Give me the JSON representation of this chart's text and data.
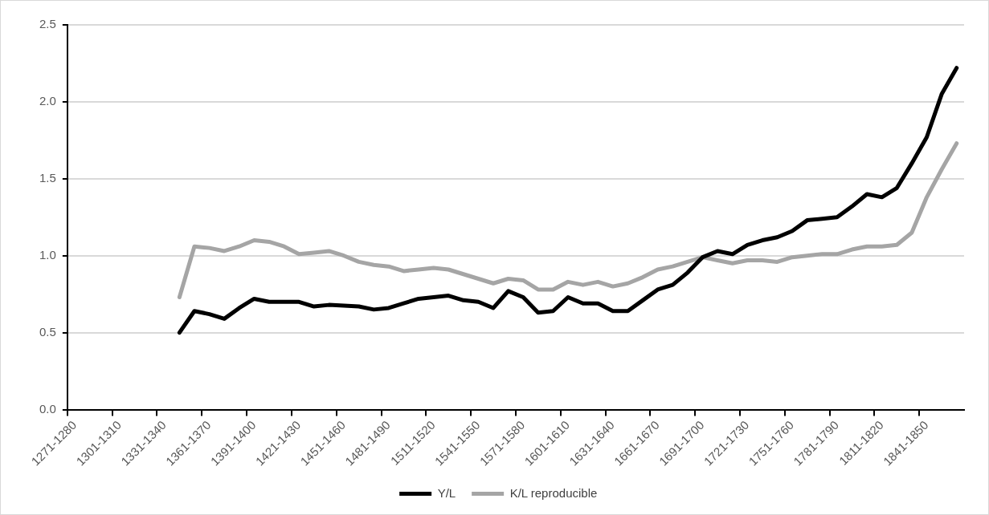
{
  "chart_data": {
    "type": "line",
    "categories": [
      "1271-1280",
      null,
      null,
      "1301-1310",
      null,
      null,
      "1331-1340",
      null,
      null,
      "1361-1370",
      null,
      null,
      "1391-1400",
      null,
      null,
      "1421-1430",
      null,
      null,
      "1451-1460",
      null,
      null,
      "1481-1490",
      null,
      null,
      "1511-1520",
      null,
      null,
      "1541-1550",
      null,
      null,
      "1571-1580",
      null,
      null,
      "1601-1610",
      null,
      null,
      "1631-1640",
      null,
      null,
      "1661-1670",
      null,
      null,
      "1691-1700",
      null,
      null,
      "1721-1730",
      null,
      null,
      "1751-1760",
      null,
      null,
      "1781-1790",
      null,
      null,
      "1811-1820",
      null,
      null,
      "1841-1850",
      null,
      null
    ],
    "series": [
      {
        "name": "Y/L",
        "color": "#000000",
        "values": [
          null,
          null,
          null,
          null,
          null,
          null,
          null,
          0.5,
          0.64,
          0.62,
          0.59,
          0.66,
          0.72,
          0.7,
          0.7,
          0.7,
          0.67,
          0.68,
          0.675,
          0.67,
          0.65,
          0.66,
          0.69,
          0.72,
          0.73,
          0.74,
          0.71,
          0.7,
          0.66,
          0.77,
          0.73,
          0.63,
          0.64,
          0.73,
          0.69,
          0.69,
          0.64,
          0.64,
          0.71,
          0.78,
          0.81,
          0.89,
          0.99,
          1.03,
          1.01,
          1.07,
          1.1,
          1.12,
          1.16,
          1.23,
          1.24,
          1.25,
          1.32,
          1.4,
          1.38,
          1.44,
          1.6,
          1.77,
          2.05,
          2.22
        ]
      },
      {
        "name": "K/L reproducible",
        "color": "#a5a5a5",
        "values": [
          null,
          null,
          null,
          null,
          null,
          null,
          null,
          0.73,
          1.06,
          1.05,
          1.03,
          1.06,
          1.1,
          1.09,
          1.06,
          1.01,
          1.02,
          1.03,
          1.0,
          0.96,
          0.94,
          0.93,
          0.9,
          0.91,
          0.92,
          0.91,
          0.88,
          0.85,
          0.82,
          0.85,
          0.84,
          0.78,
          0.78,
          0.83,
          0.81,
          0.83,
          0.8,
          0.82,
          0.86,
          0.91,
          0.93,
          0.96,
          0.99,
          0.97,
          0.95,
          0.97,
          0.97,
          0.96,
          0.99,
          1.0,
          1.01,
          1.01,
          1.04,
          1.06,
          1.06,
          1.07,
          1.15,
          1.38,
          1.56,
          1.73
        ]
      }
    ],
    "ylim": [
      0,
      2.5
    ],
    "yticks": [
      {
        "value": 0,
        "label": "0.0"
      },
      {
        "value": 0.5,
        "label": "0.5"
      },
      {
        "value": 1,
        "label": "1.0"
      },
      {
        "value": 1.5,
        "label": "1.5"
      },
      {
        "value": 2,
        "label": "2.0"
      },
      {
        "value": 2.5,
        "label": "2.5"
      }
    ],
    "grid": "y",
    "legend": "bottom",
    "marker": "none",
    "line_style": "solid"
  }
}
